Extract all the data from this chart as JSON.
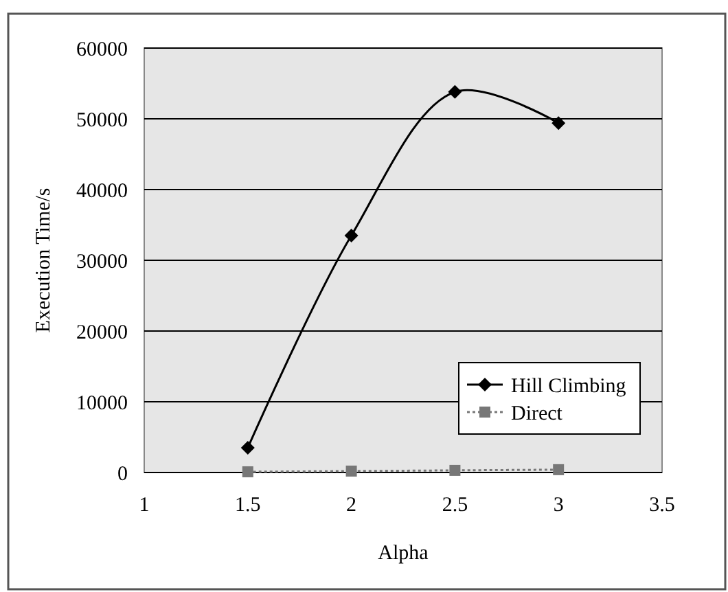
{
  "chart_data": {
    "type": "line",
    "xlabel": "Alpha",
    "ylabel": "Execution Time/s",
    "x": [
      1.5,
      2,
      2.5,
      3
    ],
    "series": [
      {
        "name": "Hill Climbing",
        "color": "#000000",
        "values": [
          3500,
          33500,
          53800,
          49400
        ],
        "marker": "diamond",
        "line_style": "solid"
      },
      {
        "name": "Direct",
        "color": "#777777",
        "values": [
          100,
          200,
          300,
          400
        ],
        "marker": "square",
        "line_style": "dotted"
      }
    ],
    "xlim": [
      1,
      3.5
    ],
    "xticks": [
      1,
      1.5,
      2,
      2.5,
      3,
      3.5
    ],
    "ylim": [
      0,
      60000
    ],
    "yticks": [
      0,
      10000,
      20000,
      30000,
      40000,
      50000,
      60000
    ],
    "grid": "y",
    "legend": "bottom right"
  }
}
